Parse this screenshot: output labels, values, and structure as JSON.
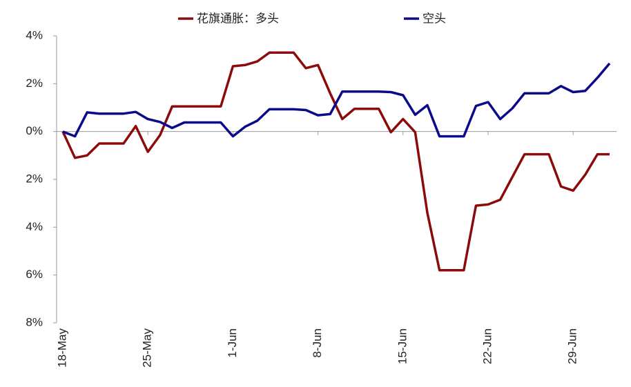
{
  "chart_data": {
    "type": "line",
    "categories": [
      "18-May",
      null,
      null,
      null,
      null,
      null,
      null,
      "25-May",
      null,
      null,
      null,
      null,
      null,
      null,
      "1-Jun",
      null,
      null,
      null,
      null,
      null,
      null,
      "8-Jun",
      null,
      null,
      null,
      null,
      null,
      null,
      "15-Jun",
      null,
      null,
      null,
      null,
      null,
      null,
      "22-Jun",
      null,
      null,
      null,
      null,
      null,
      null,
      "29-Jun",
      null,
      null,
      null
    ],
    "series": [
      {
        "name": "花旗通胀：多头",
        "color": "#8b0a0a",
        "values": [
          0,
          -1.1,
          -1.0,
          -0.5,
          -0.5,
          -0.5,
          0.23,
          -0.85,
          -0.15,
          1.05,
          1.05,
          1.05,
          1.05,
          1.05,
          2.73,
          2.78,
          2.93,
          3.3,
          3.3,
          3.3,
          2.65,
          2.78,
          1.6,
          0.52,
          0.95,
          0.95,
          0.95,
          -0.03,
          0.52,
          -0.03,
          -3.4,
          -5.8,
          -5.8,
          -5.8,
          -3.1,
          -3.05,
          -2.85,
          -1.9,
          -0.95,
          -0.95,
          -0.95,
          -2.3,
          -2.47,
          -1.8,
          -0.95,
          -0.95
        ]
      },
      {
        "name": "空头",
        "color": "#0a0a8b",
        "values": [
          0,
          -0.2,
          0.8,
          0.75,
          0.75,
          0.75,
          0.82,
          0.52,
          0.4,
          0.15,
          0.38,
          0.38,
          0.38,
          0.38,
          -0.2,
          0.2,
          0.45,
          0.93,
          0.93,
          0.93,
          0.9,
          0.68,
          0.73,
          1.67,
          1.67,
          1.67,
          1.67,
          1.65,
          1.52,
          0.7,
          1.1,
          -0.2,
          -0.2,
          -0.2,
          1.07,
          1.23,
          0.52,
          0.97,
          1.6,
          1.6,
          1.6,
          1.9,
          1.65,
          1.7,
          2.25,
          2.85
        ]
      }
    ],
    "ylim": [
      -8,
      4
    ],
    "yticks": [
      {
        "value": -8,
        "label": "8%"
      },
      {
        "value": -6,
        "label": "6%"
      },
      {
        "value": -4,
        "label": "4%"
      },
      {
        "value": -2,
        "label": "2%"
      },
      {
        "value": 0,
        "label": "0%"
      },
      {
        "value": 2,
        "label": "2%"
      },
      {
        "value": 4,
        "label": "4%"
      }
    ],
    "grid": false
  }
}
